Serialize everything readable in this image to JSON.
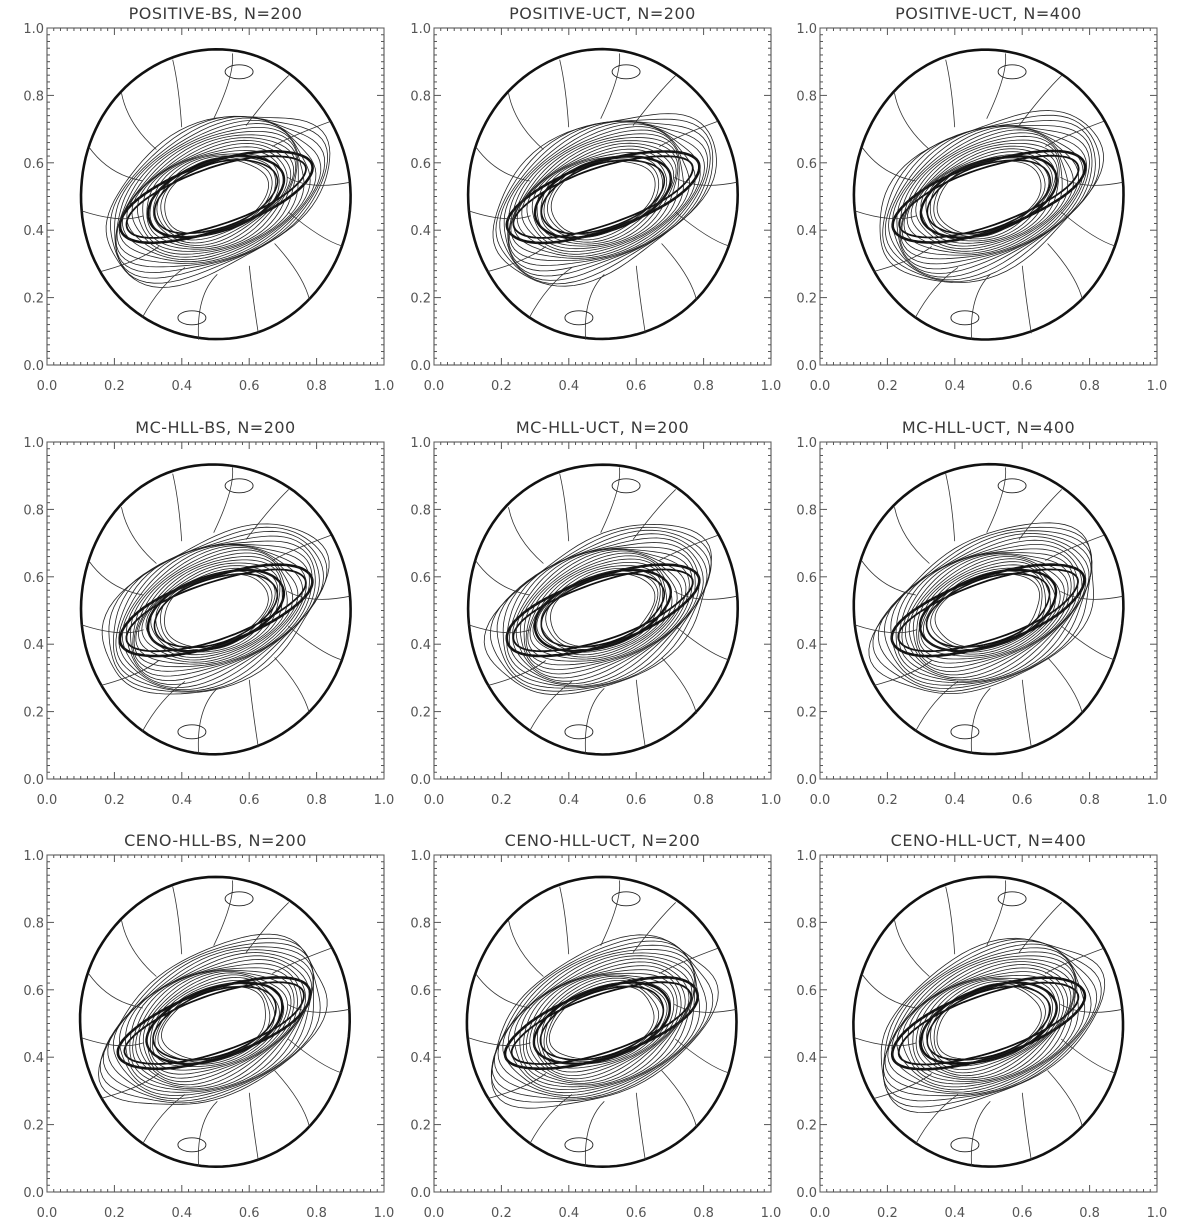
{
  "chart_data": [
    {
      "type": "contour",
      "title": "POSITIVE-BS, N=200",
      "xlim": [
        0,
        1
      ],
      "ylim": [
        0,
        1
      ],
      "xticks": [
        "0.0",
        "0.2",
        "0.4",
        "0.6",
        "0.8",
        "1.0"
      ],
      "yticks": [
        "0.0",
        "0.2",
        "0.4",
        "0.6",
        "0.8",
        "1.0"
      ]
    },
    {
      "type": "contour",
      "title": "POSITIVE-UCT, N=200",
      "xlim": [
        0,
        1
      ],
      "ylim": [
        0,
        1
      ],
      "xticks": [
        "0.0",
        "0.2",
        "0.4",
        "0.6",
        "0.8",
        "1.0"
      ],
      "yticks": [
        "0.0",
        "0.2",
        "0.4",
        "0.6",
        "0.8",
        "1.0"
      ]
    },
    {
      "type": "contour",
      "title": "POSITIVE-UCT, N=400",
      "xlim": [
        0,
        1
      ],
      "ylim": [
        0,
        1
      ],
      "xticks": [
        "0.0",
        "0.2",
        "0.4",
        "0.6",
        "0.8",
        "1.0"
      ],
      "yticks": [
        "0.0",
        "0.2",
        "0.4",
        "0.6",
        "0.8",
        "1.0"
      ]
    },
    {
      "type": "contour",
      "title": "MC-HLL-BS, N=200",
      "xlim": [
        0,
        1
      ],
      "ylim": [
        0,
        1
      ],
      "xticks": [
        "0.0",
        "0.2",
        "0.4",
        "0.6",
        "0.8",
        "1.0"
      ],
      "yticks": [
        "0.0",
        "0.2",
        "0.4",
        "0.6",
        "0.8",
        "1.0"
      ]
    },
    {
      "type": "contour",
      "title": "MC-HLL-UCT, N=200",
      "xlim": [
        0,
        1
      ],
      "ylim": [
        0,
        1
      ],
      "xticks": [
        "0.0",
        "0.2",
        "0.4",
        "0.6",
        "0.8",
        "1.0"
      ],
      "yticks": [
        "0.0",
        "0.2",
        "0.4",
        "0.6",
        "0.8",
        "1.0"
      ]
    },
    {
      "type": "contour",
      "title": "MC-HLL-UCT, N=400",
      "xlim": [
        0,
        1
      ],
      "ylim": [
        0,
        1
      ],
      "xticks": [
        "0.0",
        "0.2",
        "0.4",
        "0.6",
        "0.8",
        "1.0"
      ],
      "yticks": [
        "0.0",
        "0.2",
        "0.4",
        "0.6",
        "0.8",
        "1.0"
      ]
    },
    {
      "type": "contour",
      "title": "CENO-HLL-BS, N=200",
      "xlim": [
        0,
        1
      ],
      "ylim": [
        0,
        1
      ],
      "xticks": [
        "0.0",
        "0.2",
        "0.4",
        "0.6",
        "0.8",
        "1.0"
      ],
      "yticks": [
        "0.0",
        "0.2",
        "0.4",
        "0.6",
        "0.8",
        "1.0"
      ]
    },
    {
      "type": "contour",
      "title": "CENO-HLL-UCT, N=200",
      "xlim": [
        0,
        1
      ],
      "ylim": [
        0,
        1
      ],
      "xticks": [
        "0.0",
        "0.2",
        "0.4",
        "0.6",
        "0.8",
        "1.0"
      ],
      "yticks": [
        "0.0",
        "0.2",
        "0.4",
        "0.6",
        "0.8",
        "1.0"
      ]
    },
    {
      "type": "contour",
      "title": "CENO-HLL-UCT, N=400",
      "xlim": [
        0,
        1
      ],
      "ylim": [
        0,
        1
      ],
      "xticks": [
        "0.0",
        "0.2",
        "0.4",
        "0.6",
        "0.8",
        "1.0"
      ],
      "yticks": [
        "0.0",
        "0.2",
        "0.4",
        "0.6",
        "0.8",
        "1.0"
      ]
    }
  ]
}
